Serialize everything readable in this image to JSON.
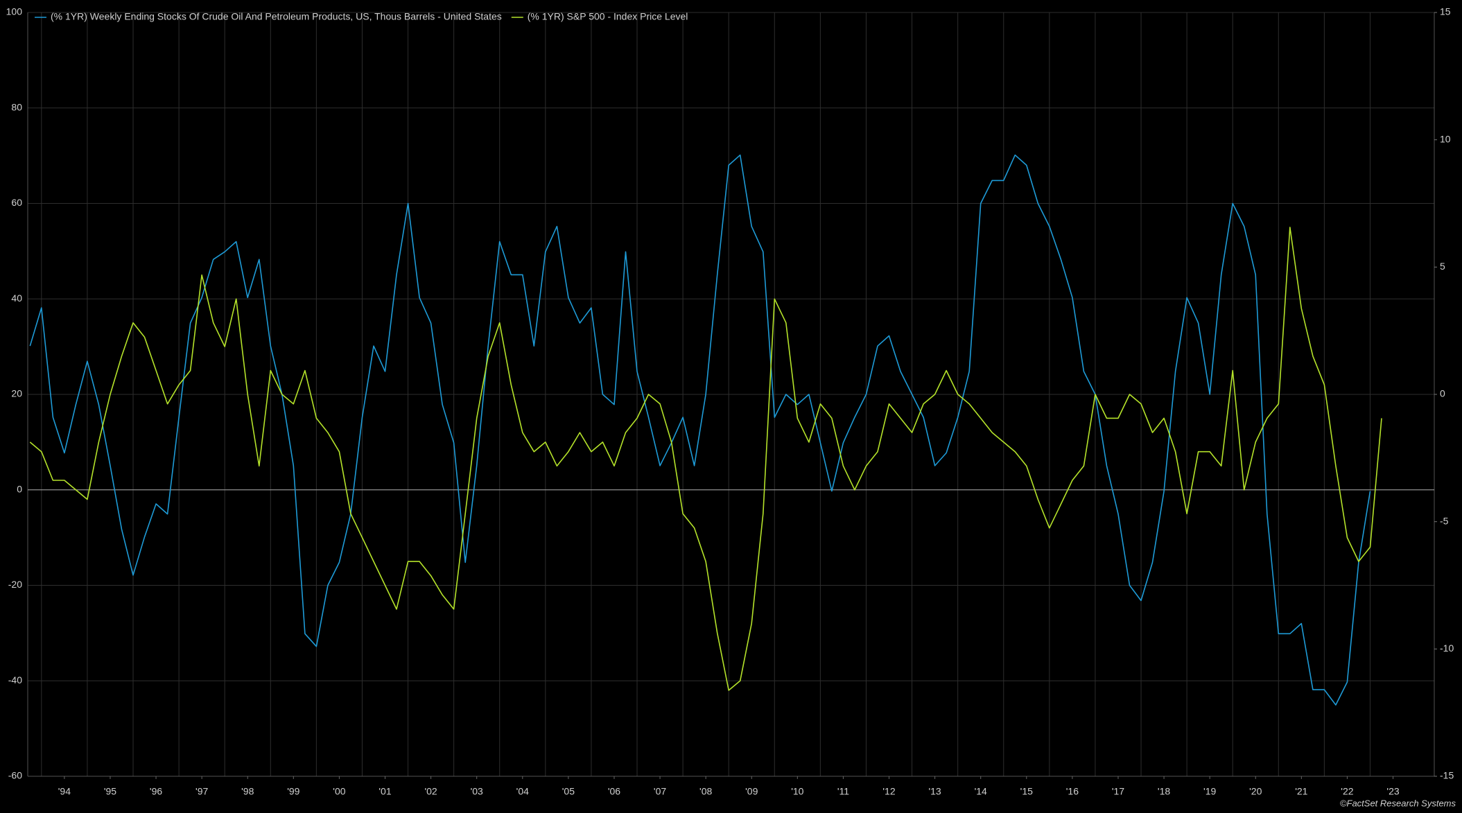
{
  "chart_data": {
    "type": "line",
    "legend": "top-left",
    "grid": true,
    "source": "©FactSet Research Systems",
    "x": [
      1993.75,
      1994.0,
      1994.25,
      1994.5,
      1994.75,
      1995.0,
      1995.25,
      1995.5,
      1995.75,
      1996.0,
      1996.25,
      1996.5,
      1996.75,
      1997.0,
      1997.25,
      1997.5,
      1997.75,
      1998.0,
      1998.25,
      1998.5,
      1998.75,
      1999.0,
      1999.25,
      1999.5,
      1999.75,
      2000.0,
      2000.25,
      2000.5,
      2000.75,
      2001.0,
      2001.25,
      2001.5,
      2001.75,
      2002.0,
      2002.25,
      2002.5,
      2002.75,
      2003.0,
      2003.25,
      2003.5,
      2003.75,
      2004.0,
      2004.25,
      2004.5,
      2004.75,
      2005.0,
      2005.25,
      2005.5,
      2005.75,
      2006.0,
      2006.25,
      2006.5,
      2006.75,
      2007.0,
      2007.25,
      2007.5,
      2007.75,
      2008.0,
      2008.25,
      2008.5,
      2008.75,
      2009.0,
      2009.25,
      2009.5,
      2009.75,
      2010.0,
      2010.25,
      2010.5,
      2010.75,
      2011.0,
      2011.25,
      2011.5,
      2011.75,
      2012.0,
      2012.25,
      2012.5,
      2012.75,
      2013.0,
      2013.25,
      2013.5,
      2013.75,
      2014.0,
      2014.25,
      2014.5,
      2014.75,
      2015.0,
      2015.25,
      2015.5,
      2015.75,
      2016.0,
      2016.25,
      2016.5,
      2016.75,
      2017.0,
      2017.25,
      2017.5,
      2017.75,
      2018.0,
      2018.25,
      2018.5,
      2018.75,
      2019.0,
      2019.25,
      2019.5,
      2019.75,
      2020.0,
      2020.25,
      2020.5,
      2020.75,
      2021.0,
      2021.25,
      2021.5,
      2021.75,
      2022.0,
      2022.25,
      2022.5,
      2022.75,
      2023.0,
      2023.25
    ],
    "series": [
      {
        "name": "(% 1YR) Weekly Ending Stocks Of Crude Oil And Petroleum Products, US, Thous Barrels - United States",
        "color": "#1e9bd7",
        "axis": "y2",
        "values": [
          1.9,
          3.4,
          -0.9,
          -2.3,
          -0.4,
          1.3,
          -0.4,
          -2.8,
          -5.3,
          -7.1,
          -5.6,
          -4.3,
          -4.7,
          -0.9,
          2.8,
          3.8,
          5.3,
          5.6,
          6.0,
          3.8,
          5.3,
          1.9,
          0,
          -2.8,
          -9.4,
          -9.9,
          -7.5,
          -6.6,
          -4.7,
          -0.9,
          1.9,
          0.9,
          4.7,
          7.5,
          3.8,
          2.8,
          -0.4,
          -1.9,
          -6.6,
          -2.8,
          1.9,
          6.0,
          4.7,
          4.7,
          1.9,
          5.6,
          6.6,
          3.8,
          2.8,
          3.4,
          0,
          -0.4,
          5.6,
          0.9,
          -0.9,
          -2.8,
          -1.9,
          -0.9,
          -2.8,
          0,
          4.7,
          9.0,
          9.4,
          6.6,
          5.6,
          -0.9,
          0,
          -0.4,
          0,
          -1.9,
          -3.8,
          -1.9,
          -0.9,
          0,
          1.9,
          2.3,
          0.9,
          0,
          -0.9,
          -2.8,
          -2.3,
          -0.9,
          0.9,
          7.5,
          8.4,
          8.4,
          9.4,
          9.0,
          7.5,
          6.6,
          5.3,
          3.8,
          0.9,
          0,
          -2.8,
          -4.7,
          -7.5,
          -8.1,
          -6.6,
          -3.8,
          0.9,
          3.8,
          2.8,
          0,
          4.7,
          7.5,
          6.6,
          4.7,
          -4.7,
          -9.4,
          -9.4,
          -9.0,
          -11.6,
          -11.6,
          -12.2,
          -11.3,
          -6.6,
          -3.8,
          null
        ]
      },
      {
        "name": "(% 1YR) S&P 500 - Index Price Level",
        "color": "#b5e32a",
        "values": [
          10,
          8,
          2,
          2,
          0,
          -2,
          10,
          20,
          28,
          35,
          32,
          25,
          18,
          22,
          25,
          45,
          35,
          30,
          40,
          20,
          5,
          25,
          20,
          18,
          25,
          15,
          12,
          8,
          -5,
          -10,
          -15,
          -20,
          -25,
          -15,
          -15,
          -18,
          -22,
          -25,
          -5,
          15,
          28,
          35,
          22,
          12,
          8,
          10,
          5,
          8,
          12,
          8,
          10,
          5,
          12,
          15,
          20,
          18,
          10,
          -5,
          -8,
          -15,
          -30,
          -42,
          -40,
          -28,
          -5,
          40,
          35,
          15,
          10,
          18,
          15,
          5,
          0,
          5,
          8,
          18,
          15,
          12,
          18,
          20,
          25,
          20,
          18,
          15,
          12,
          10,
          8,
          5,
          -2,
          -8,
          -3,
          2,
          5,
          20,
          15,
          15,
          20,
          18,
          12,
          15,
          8,
          -5,
          8,
          8,
          5,
          25,
          0,
          10,
          15,
          18,
          55,
          38,
          28,
          22,
          5,
          -10,
          -15,
          -12,
          15
        ]
      }
    ],
    "xlim": [
      1993.7,
      2024.4
    ],
    "xticks": [
      {
        "value": 1994.5,
        "label": "'94"
      },
      {
        "value": 1995.5,
        "label": "'95"
      },
      {
        "value": 1996.5,
        "label": "'96"
      },
      {
        "value": 1997.5,
        "label": "'97"
      },
      {
        "value": 1998.5,
        "label": "'98"
      },
      {
        "value": 1999.5,
        "label": "'99"
      },
      {
        "value": 2000.5,
        "label": "'00"
      },
      {
        "value": 2001.5,
        "label": "'01"
      },
      {
        "value": 2002.5,
        "label": "'02"
      },
      {
        "value": 2003.5,
        "label": "'03"
      },
      {
        "value": 2004.5,
        "label": "'04"
      },
      {
        "value": 2005.5,
        "label": "'05"
      },
      {
        "value": 2006.5,
        "label": "'06"
      },
      {
        "value": 2007.5,
        "label": "'07"
      },
      {
        "value": 2008.5,
        "label": "'08"
      },
      {
        "value": 2009.5,
        "label": "'09"
      },
      {
        "value": 2010.5,
        "label": "'10"
      },
      {
        "value": 2011.5,
        "label": "'11"
      },
      {
        "value": 2012.5,
        "label": "'12"
      },
      {
        "value": 2013.5,
        "label": "'13"
      },
      {
        "value": 2014.5,
        "label": "'14"
      },
      {
        "value": 2015.5,
        "label": "'15"
      },
      {
        "value": 2016.5,
        "label": "'16"
      },
      {
        "value": 2017.5,
        "label": "'17"
      },
      {
        "value": 2018.5,
        "label": "'18"
      },
      {
        "value": 2019.5,
        "label": "'19"
      },
      {
        "value": 2020.5,
        "label": "'20"
      },
      {
        "value": 2021.5,
        "label": "'21"
      },
      {
        "value": 2022.5,
        "label": "'22"
      },
      {
        "value": 2023.5,
        "label": "'23"
      }
    ],
    "xgrid": [
      1994,
      1995,
      1996,
      1997,
      1998,
      1999,
      2000,
      2001,
      2002,
      2003,
      2004,
      2005,
      2006,
      2007,
      2008,
      2009,
      2010,
      2011,
      2012,
      2013,
      2014,
      2015,
      2016,
      2017,
      2018,
      2019,
      2020,
      2021,
      2022,
      2023
    ],
    "ylim": [
      -60,
      100
    ],
    "yticks": [
      -60,
      -40,
      -20,
      0,
      20,
      40,
      60,
      80,
      100
    ],
    "y2lim": [
      -15,
      15
    ],
    "y2ticks": [
      -15,
      -10,
      -5,
      0,
      5,
      10,
      15
    ]
  }
}
